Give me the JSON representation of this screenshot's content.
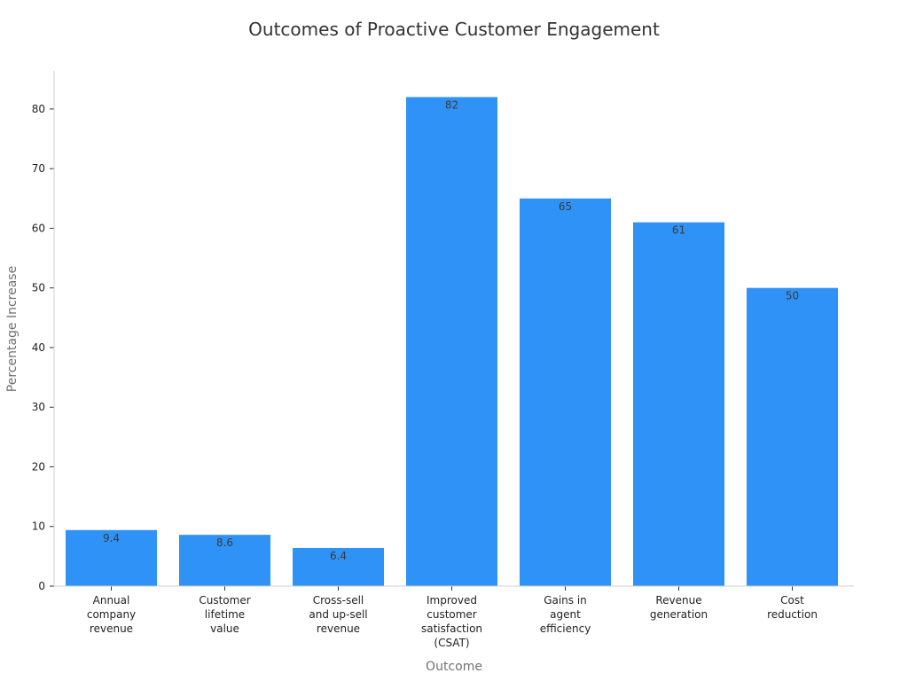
{
  "chart_data": {
    "type": "bar",
    "title": "Outcomes of Proactive Customer Engagement",
    "xlabel": "Outcome",
    "ylabel": "Percentage Increase",
    "categories": [
      "Annual company revenue",
      "Customer lifetime value",
      "Cross-sell and up-sell revenue",
      "Improved customer satisfaction (CSAT)",
      "Gains in agent efficiency",
      "Revenue generation",
      "Cost reduction"
    ],
    "category_lines": [
      [
        "Annual",
        "company",
        "revenue"
      ],
      [
        "Customer",
        "lifetime",
        "value"
      ],
      [
        "Cross-sell",
        "and up-sell",
        "revenue"
      ],
      [
        "Improved",
        "customer",
        "satisfaction",
        "(CSAT)"
      ],
      [
        "Gains in",
        "agent",
        "efficiency"
      ],
      [
        "Revenue",
        "generation"
      ],
      [
        "Cost",
        "reduction"
      ]
    ],
    "values": [
      9.4,
      8.6,
      6.4,
      82,
      65,
      61,
      50
    ],
    "data_labels": [
      "9.4",
      "8.6",
      "6.4",
      "82",
      "65",
      "61",
      "50"
    ],
    "yticks": [
      0,
      10,
      20,
      30,
      40,
      50,
      60,
      70,
      80
    ],
    "ylim": [
      0,
      86
    ],
    "grid": false,
    "bar_color": "#2f92f7",
    "axis_color": "#cfcfcf"
  }
}
